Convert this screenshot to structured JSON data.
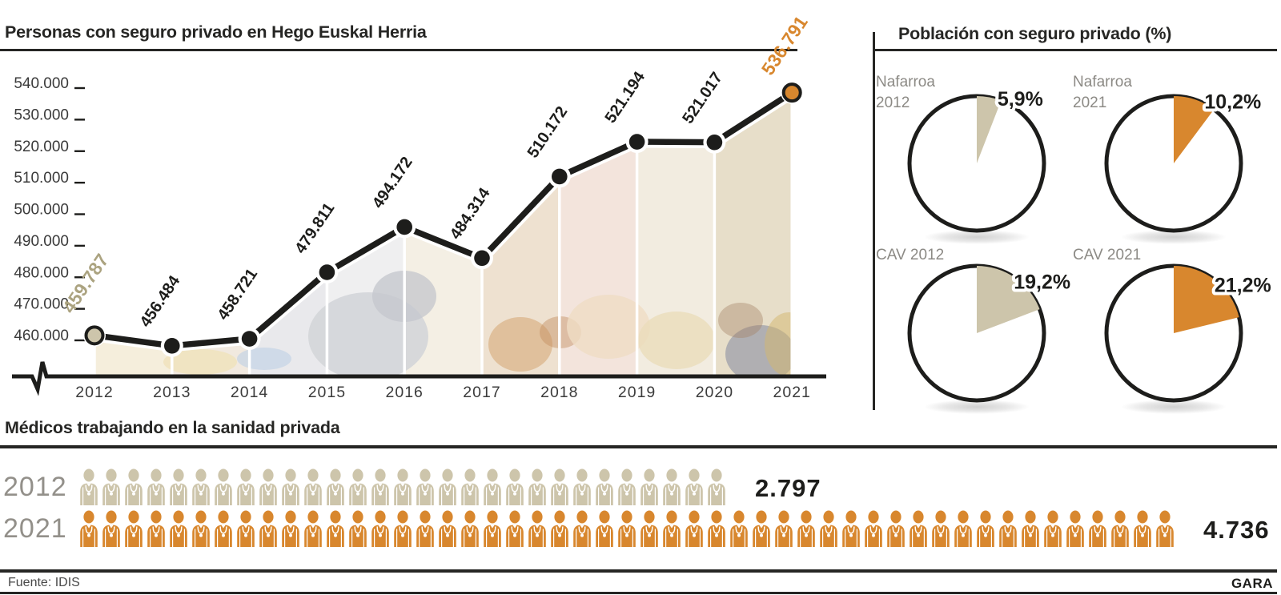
{
  "palette": {
    "ink": "#1d1d1b",
    "beige": "#cdc5ab",
    "beige_text": "#aba380",
    "orange": "#d8872e",
    "gray_label": "#8c8a85",
    "axis_text": "#3b3b3b"
  },
  "chart_data": [
    {
      "id": "insured-line",
      "type": "line",
      "title": "Personas con seguro privado en Hego Euskal Herria",
      "categories": [
        "2012",
        "2013",
        "2014",
        "2015",
        "2016",
        "2017",
        "2018",
        "2019",
        "2020",
        "2021"
      ],
      "values": [
        459787,
        456484,
        458721,
        479811,
        494172,
        484314,
        510172,
        521194,
        521017,
        536791
      ],
      "value_labels": [
        "459.787",
        "456.484",
        "458.721",
        "479.811",
        "494.172",
        "484.314",
        "510.172",
        "521.194",
        "521.017",
        "536.791"
      ],
      "y_tick_values": [
        540000,
        530000,
        520000,
        510000,
        500000,
        490000,
        480000,
        470000,
        460000
      ],
      "y_tick_labels": [
        "540.000",
        "530.000",
        "520.000",
        "510.000",
        "500.000",
        "490.000",
        "480.000",
        "470.000",
        "460.000"
      ],
      "ylim": [
        455000,
        545000
      ],
      "grid": false,
      "legend": "none",
      "axis_break": true,
      "first_point_color": "#cdc5ab",
      "first_label_color": "#aba380",
      "last_point_color": "#d8872e",
      "last_label_color": "#d8872e"
    },
    {
      "id": "insured-share-pies",
      "type": "pie",
      "title": "Población con seguro privado (%)",
      "pies": [
        {
          "label_lines": [
            "Nafarroa",
            "2012"
          ],
          "value_pct": 5.9,
          "display": "5,9%",
          "color": "#cdc5ab"
        },
        {
          "label_lines": [
            "Nafarroa",
            "2021"
          ],
          "value_pct": 10.2,
          "display": "10,2%",
          "color": "#d8872e"
        },
        {
          "label_lines": [
            "CAV 2012"
          ],
          "value_pct": 19.2,
          "display": "19,2%",
          "color": "#cdc5ab"
        },
        {
          "label_lines": [
            "CAV 2021"
          ],
          "value_pct": 21.2,
          "display": "21,2%",
          "color": "#d8872e"
        }
      ]
    },
    {
      "id": "doctors-pictogram",
      "type": "pictogram",
      "title": "Médicos trabajando en la sanidad privada",
      "icon": "doctor-icon",
      "rows": [
        {
          "year": "2012",
          "value": 2797,
          "display": "2.797",
          "color": "#cdc5ab",
          "icon_count": 29
        },
        {
          "year": "2021",
          "value": 4736,
          "display": "4.736",
          "color": "#d8872e",
          "icon_count": 49
        }
      ]
    }
  ],
  "footer": {
    "source": "Fuente: IDIS",
    "credit": "GARA"
  }
}
